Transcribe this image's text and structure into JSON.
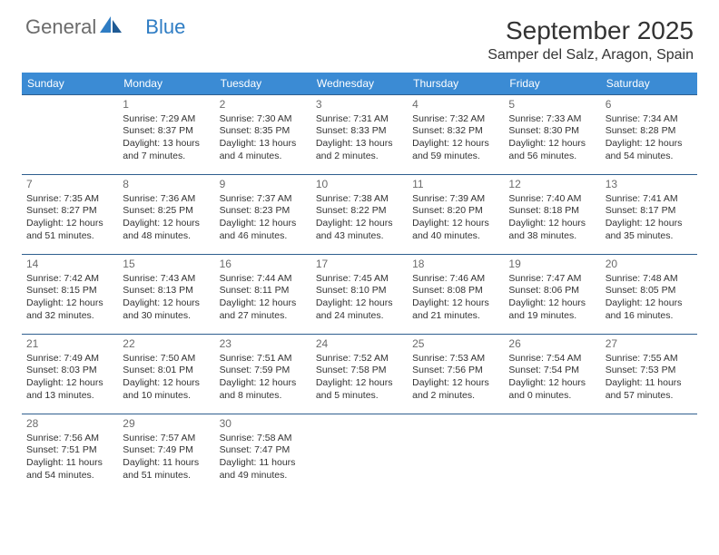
{
  "logo": {
    "part1": "General",
    "part2": "Blue"
  },
  "title": "September 2025",
  "location": "Samper del Salz, Aragon, Spain",
  "colors": {
    "header_bg": "#3b8bd4",
    "header_text": "#ffffff",
    "row_border": "#2f5f8f",
    "daynum": "#6b6b6b",
    "body_text": "#333333",
    "logo_gray": "#6b6b6b",
    "logo_blue": "#2f7dc4"
  },
  "weekdays": [
    "Sunday",
    "Monday",
    "Tuesday",
    "Wednesday",
    "Thursday",
    "Friday",
    "Saturday"
  ],
  "weeks": [
    [
      null,
      {
        "n": "1",
        "sr": "Sunrise: 7:29 AM",
        "ss": "Sunset: 8:37 PM",
        "d1": "Daylight: 13 hours",
        "d2": "and 7 minutes."
      },
      {
        "n": "2",
        "sr": "Sunrise: 7:30 AM",
        "ss": "Sunset: 8:35 PM",
        "d1": "Daylight: 13 hours",
        "d2": "and 4 minutes."
      },
      {
        "n": "3",
        "sr": "Sunrise: 7:31 AM",
        "ss": "Sunset: 8:33 PM",
        "d1": "Daylight: 13 hours",
        "d2": "and 2 minutes."
      },
      {
        "n": "4",
        "sr": "Sunrise: 7:32 AM",
        "ss": "Sunset: 8:32 PM",
        "d1": "Daylight: 12 hours",
        "d2": "and 59 minutes."
      },
      {
        "n": "5",
        "sr": "Sunrise: 7:33 AM",
        "ss": "Sunset: 8:30 PM",
        "d1": "Daylight: 12 hours",
        "d2": "and 56 minutes."
      },
      {
        "n": "6",
        "sr": "Sunrise: 7:34 AM",
        "ss": "Sunset: 8:28 PM",
        "d1": "Daylight: 12 hours",
        "d2": "and 54 minutes."
      }
    ],
    [
      {
        "n": "7",
        "sr": "Sunrise: 7:35 AM",
        "ss": "Sunset: 8:27 PM",
        "d1": "Daylight: 12 hours",
        "d2": "and 51 minutes."
      },
      {
        "n": "8",
        "sr": "Sunrise: 7:36 AM",
        "ss": "Sunset: 8:25 PM",
        "d1": "Daylight: 12 hours",
        "d2": "and 48 minutes."
      },
      {
        "n": "9",
        "sr": "Sunrise: 7:37 AM",
        "ss": "Sunset: 8:23 PM",
        "d1": "Daylight: 12 hours",
        "d2": "and 46 minutes."
      },
      {
        "n": "10",
        "sr": "Sunrise: 7:38 AM",
        "ss": "Sunset: 8:22 PM",
        "d1": "Daylight: 12 hours",
        "d2": "and 43 minutes."
      },
      {
        "n": "11",
        "sr": "Sunrise: 7:39 AM",
        "ss": "Sunset: 8:20 PM",
        "d1": "Daylight: 12 hours",
        "d2": "and 40 minutes."
      },
      {
        "n": "12",
        "sr": "Sunrise: 7:40 AM",
        "ss": "Sunset: 8:18 PM",
        "d1": "Daylight: 12 hours",
        "d2": "and 38 minutes."
      },
      {
        "n": "13",
        "sr": "Sunrise: 7:41 AM",
        "ss": "Sunset: 8:17 PM",
        "d1": "Daylight: 12 hours",
        "d2": "and 35 minutes."
      }
    ],
    [
      {
        "n": "14",
        "sr": "Sunrise: 7:42 AM",
        "ss": "Sunset: 8:15 PM",
        "d1": "Daylight: 12 hours",
        "d2": "and 32 minutes."
      },
      {
        "n": "15",
        "sr": "Sunrise: 7:43 AM",
        "ss": "Sunset: 8:13 PM",
        "d1": "Daylight: 12 hours",
        "d2": "and 30 minutes."
      },
      {
        "n": "16",
        "sr": "Sunrise: 7:44 AM",
        "ss": "Sunset: 8:11 PM",
        "d1": "Daylight: 12 hours",
        "d2": "and 27 minutes."
      },
      {
        "n": "17",
        "sr": "Sunrise: 7:45 AM",
        "ss": "Sunset: 8:10 PM",
        "d1": "Daylight: 12 hours",
        "d2": "and 24 minutes."
      },
      {
        "n": "18",
        "sr": "Sunrise: 7:46 AM",
        "ss": "Sunset: 8:08 PM",
        "d1": "Daylight: 12 hours",
        "d2": "and 21 minutes."
      },
      {
        "n": "19",
        "sr": "Sunrise: 7:47 AM",
        "ss": "Sunset: 8:06 PM",
        "d1": "Daylight: 12 hours",
        "d2": "and 19 minutes."
      },
      {
        "n": "20",
        "sr": "Sunrise: 7:48 AM",
        "ss": "Sunset: 8:05 PM",
        "d1": "Daylight: 12 hours",
        "d2": "and 16 minutes."
      }
    ],
    [
      {
        "n": "21",
        "sr": "Sunrise: 7:49 AM",
        "ss": "Sunset: 8:03 PM",
        "d1": "Daylight: 12 hours",
        "d2": "and 13 minutes."
      },
      {
        "n": "22",
        "sr": "Sunrise: 7:50 AM",
        "ss": "Sunset: 8:01 PM",
        "d1": "Daylight: 12 hours",
        "d2": "and 10 minutes."
      },
      {
        "n": "23",
        "sr": "Sunrise: 7:51 AM",
        "ss": "Sunset: 7:59 PM",
        "d1": "Daylight: 12 hours",
        "d2": "and 8 minutes."
      },
      {
        "n": "24",
        "sr": "Sunrise: 7:52 AM",
        "ss": "Sunset: 7:58 PM",
        "d1": "Daylight: 12 hours",
        "d2": "and 5 minutes."
      },
      {
        "n": "25",
        "sr": "Sunrise: 7:53 AM",
        "ss": "Sunset: 7:56 PM",
        "d1": "Daylight: 12 hours",
        "d2": "and 2 minutes."
      },
      {
        "n": "26",
        "sr": "Sunrise: 7:54 AM",
        "ss": "Sunset: 7:54 PM",
        "d1": "Daylight: 12 hours",
        "d2": "and 0 minutes."
      },
      {
        "n": "27",
        "sr": "Sunrise: 7:55 AM",
        "ss": "Sunset: 7:53 PM",
        "d1": "Daylight: 11 hours",
        "d2": "and 57 minutes."
      }
    ],
    [
      {
        "n": "28",
        "sr": "Sunrise: 7:56 AM",
        "ss": "Sunset: 7:51 PM",
        "d1": "Daylight: 11 hours",
        "d2": "and 54 minutes."
      },
      {
        "n": "29",
        "sr": "Sunrise: 7:57 AM",
        "ss": "Sunset: 7:49 PM",
        "d1": "Daylight: 11 hours",
        "d2": "and 51 minutes."
      },
      {
        "n": "30",
        "sr": "Sunrise: 7:58 AM",
        "ss": "Sunset: 7:47 PM",
        "d1": "Daylight: 11 hours",
        "d2": "and 49 minutes."
      },
      null,
      null,
      null,
      null
    ]
  ]
}
